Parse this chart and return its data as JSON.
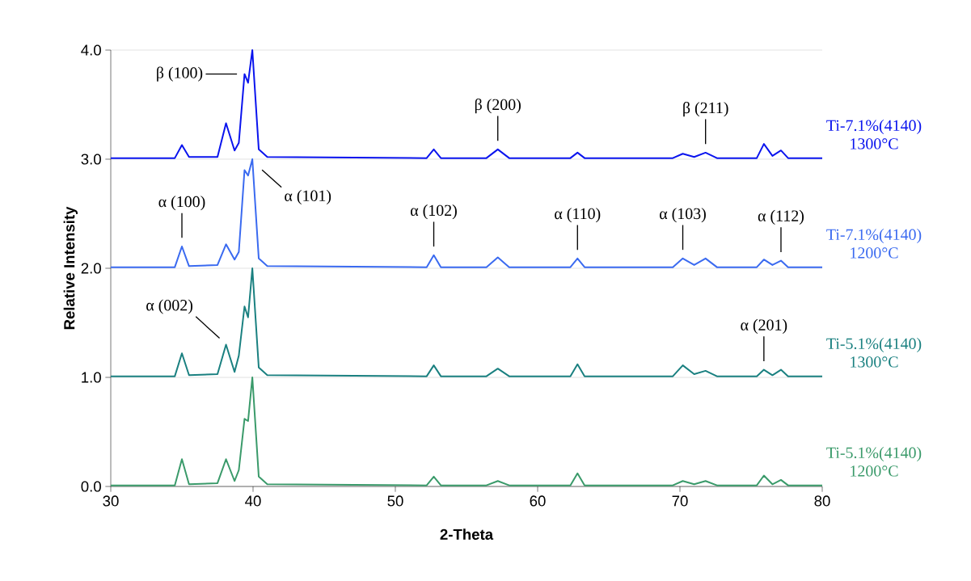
{
  "chart_data": {
    "type": "line",
    "xlabel": "2-Theta",
    "ylabel": "Relative Intensity",
    "x": [
      30,
      34.5,
      35.0,
      35.5,
      37.5,
      38.1,
      38.7,
      39.0,
      39.4,
      39.65,
      39.95,
      40.4,
      41,
      52.2,
      52.7,
      53.2,
      56.4,
      57.2,
      58.0,
      62.3,
      62.8,
      63.3,
      69.5,
      70.2,
      71.0,
      71.8,
      72.6,
      75.4,
      75.9,
      76.5,
      77.1,
      77.6,
      80
    ],
    "series": [
      {
        "name": "Ti-7.1%(4140) 1300°C",
        "color": "#0a14ee",
        "values": [
          3.01,
          3.01,
          3.13,
          3.02,
          3.02,
          3.33,
          3.08,
          3.15,
          3.78,
          3.7,
          4.0,
          3.09,
          3.02,
          3.01,
          3.09,
          3.01,
          3.01,
          3.09,
          3.01,
          3.01,
          3.06,
          3.01,
          3.01,
          3.05,
          3.02,
          3.06,
          3.01,
          3.01,
          3.14,
          3.03,
          3.08,
          3.01,
          3.01
        ]
      },
      {
        "name": "Ti-7.1%(4140) 1200°C",
        "color": "#3a6af0",
        "values": [
          2.01,
          2.01,
          2.2,
          2.02,
          2.03,
          2.22,
          2.08,
          2.15,
          2.9,
          2.85,
          3.0,
          2.09,
          2.02,
          2.01,
          2.12,
          2.01,
          2.01,
          2.1,
          2.01,
          2.01,
          2.09,
          2.01,
          2.01,
          2.09,
          2.03,
          2.09,
          2.01,
          2.01,
          2.08,
          2.03,
          2.07,
          2.01,
          2.01
        ]
      },
      {
        "name": "Ti-5.1%(4140) 1300°C",
        "color": "#1a8080",
        "values": [
          1.01,
          1.01,
          1.22,
          1.02,
          1.03,
          1.3,
          1.05,
          1.2,
          1.65,
          1.55,
          2.0,
          1.09,
          1.02,
          1.01,
          1.11,
          1.01,
          1.01,
          1.08,
          1.01,
          1.01,
          1.12,
          1.01,
          1.01,
          1.11,
          1.03,
          1.06,
          1.01,
          1.01,
          1.07,
          1.02,
          1.07,
          1.01,
          1.01
        ]
      },
      {
        "name": "Ti-5.1%(4140) 1200°C",
        "color": "#3a9a6a",
        "values": [
          0.01,
          0.01,
          0.25,
          0.02,
          0.03,
          0.25,
          0.05,
          0.15,
          0.62,
          0.6,
          1.0,
          0.09,
          0.02,
          0.01,
          0.09,
          0.01,
          0.01,
          0.05,
          0.01,
          0.01,
          0.12,
          0.01,
          0.01,
          0.05,
          0.02,
          0.05,
          0.01,
          0.01,
          0.1,
          0.02,
          0.06,
          0.01,
          0.01
        ]
      }
    ],
    "xlim": [
      30,
      80
    ],
    "xticks": [
      30,
      40,
      50,
      60,
      70,
      80
    ],
    "ylim": [
      0,
      4
    ],
    "yticks": [
      {
        "value": 0,
        "label": "0.0"
      },
      {
        "value": 1,
        "label": "1.0"
      },
      {
        "value": 2,
        "label": "2.0"
      },
      {
        "value": 3,
        "label": "3.0"
      },
      {
        "value": 4,
        "label": "4.0"
      }
    ],
    "grid": "y",
    "legend": false,
    "marker": "none",
    "line_style": "solid",
    "annotations": [
      {
        "text": "β (100)",
        "x": 39.4,
        "y": 3.78
      },
      {
        "text": "β (200)",
        "x": 57.2,
        "y": 3.09
      },
      {
        "text": "β (211)",
        "x": 71.8,
        "y": 3.06
      },
      {
        "text": "α (101)",
        "x": 39.95,
        "y": 3.0
      },
      {
        "text": "α (100)",
        "x": 35.0,
        "y": 2.2
      },
      {
        "text": "α (102)",
        "x": 52.7,
        "y": 2.12
      },
      {
        "text": "α (110)",
        "x": 62.8,
        "y": 2.09
      },
      {
        "text": "α (103)",
        "x": 70.2,
        "y": 2.09
      },
      {
        "text": "α (112)",
        "x": 77.1,
        "y": 2.07
      },
      {
        "text": "α (002)",
        "x": 38.1,
        "y": 1.3
      },
      {
        "text": "α (201)",
        "x": 75.9,
        "y": 1.07
      }
    ]
  }
}
